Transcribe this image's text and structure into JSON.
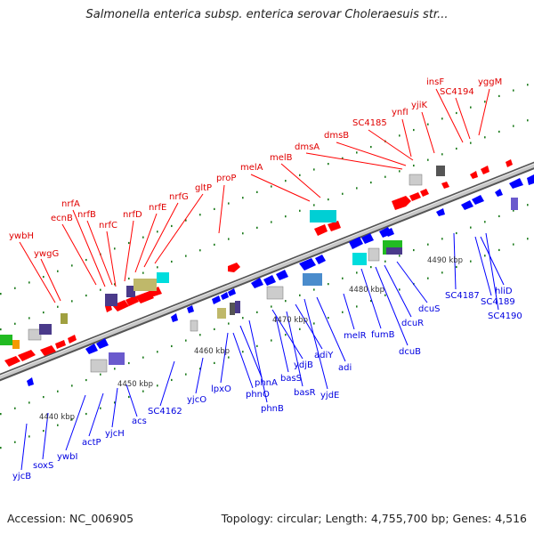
{
  "title": "Salmonella enterica subsp. enterica serovar Choleraesuis str...",
  "footer": {
    "accession": "Accession: NC_006905",
    "topology": "Topology: circular; Length: 4,755,700 bp; Genes: 4,516"
  },
  "colors": {
    "forward": "#ff0000",
    "reverse": "#0000ff",
    "backbone": "#888888",
    "tick": "#1a7a1a"
  },
  "scale_labels": [
    "4440 kbp",
    "4450 kbp",
    "4460 kbp",
    "4470 kbp",
    "4480 kbp",
    "4490 kbp"
  ],
  "forward_labels": [
    "ywbH",
    "ywgG",
    "ecnB",
    "nrfA",
    "nrfB",
    "nrfC",
    "nrfD",
    "nrfE",
    "nrfG",
    "gltP",
    "proP",
    "melA",
    "melB",
    "dmsA",
    "dmsB",
    "SC4185",
    "ynfI",
    "yjiK",
    "insF",
    "SC4194",
    "yggM"
  ],
  "reverse_labels": [
    "yjcB",
    "soxS",
    "ywbI",
    "actP",
    "yjcH",
    "acs",
    "SC4162",
    "yjcO",
    "lpxO",
    "phnO",
    "phnA",
    "phnB",
    "ydjB",
    "basS",
    "basR",
    "adiY",
    "yjdE",
    "adi",
    "melR",
    "fumB",
    "dcuB",
    "dcuR",
    "dcuS",
    "SC4187",
    "SC4189",
    "hliD",
    "SC4190"
  ]
}
